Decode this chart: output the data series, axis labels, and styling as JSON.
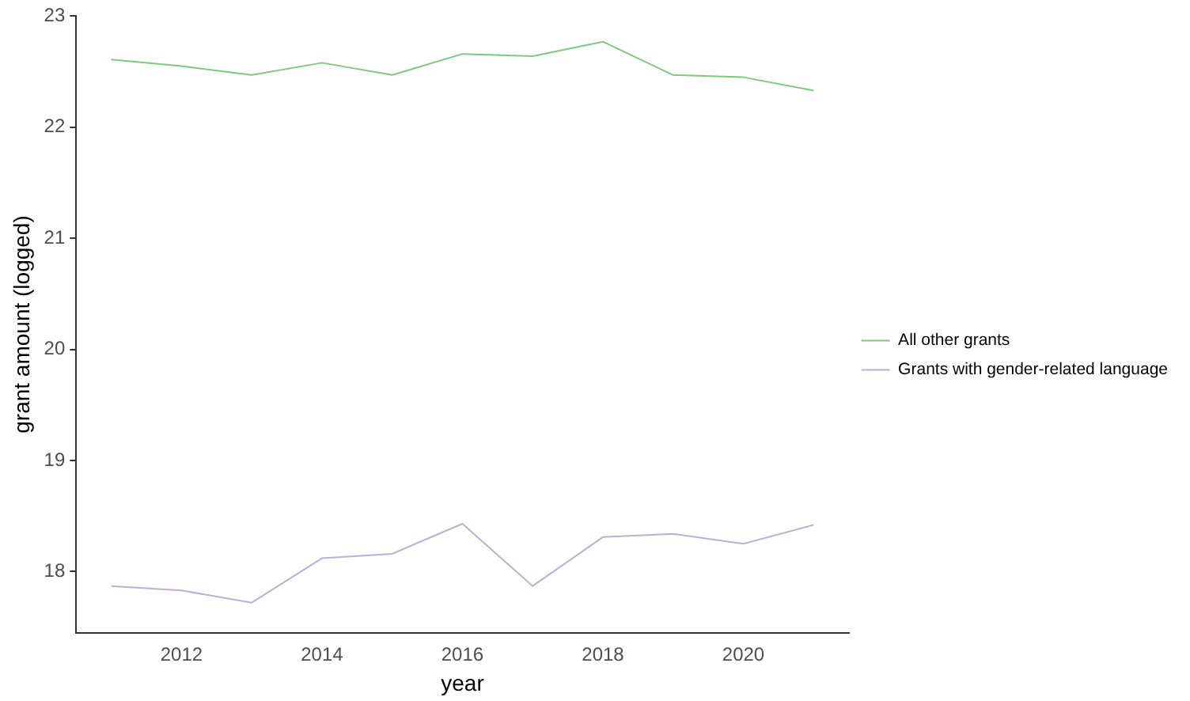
{
  "chart_data": {
    "type": "line",
    "xlabel": "year",
    "ylabel": "grant amount (logged)",
    "x": [
      2011,
      2012,
      2013,
      2014,
      2015,
      2016,
      2017,
      2018,
      2019,
      2020,
      2021
    ],
    "series": [
      {
        "name": "All other grants",
        "color": "#7fc97f",
        "values": [
          22.61,
          22.55,
          22.47,
          22.58,
          22.47,
          22.66,
          22.64,
          22.77,
          22.47,
          22.45,
          22.33
        ]
      },
      {
        "name": "Grants with gender-related language",
        "color": "#beaed4",
        "values": [
          17.87,
          17.83,
          17.72,
          18.12,
          18.16,
          18.43,
          17.87,
          18.31,
          18.34,
          18.25,
          18.42
        ]
      }
    ],
    "xlim": [
      2010.5,
      2021.5
    ],
    "xticks": [
      2012,
      2014,
      2016,
      2018,
      2020
    ],
    "ylim": [
      17.45,
      23
    ],
    "yticks": [
      18,
      19,
      20,
      21,
      22,
      23
    ],
    "grid": false,
    "legend": "right",
    "marker": "none",
    "line_style": "solid"
  }
}
